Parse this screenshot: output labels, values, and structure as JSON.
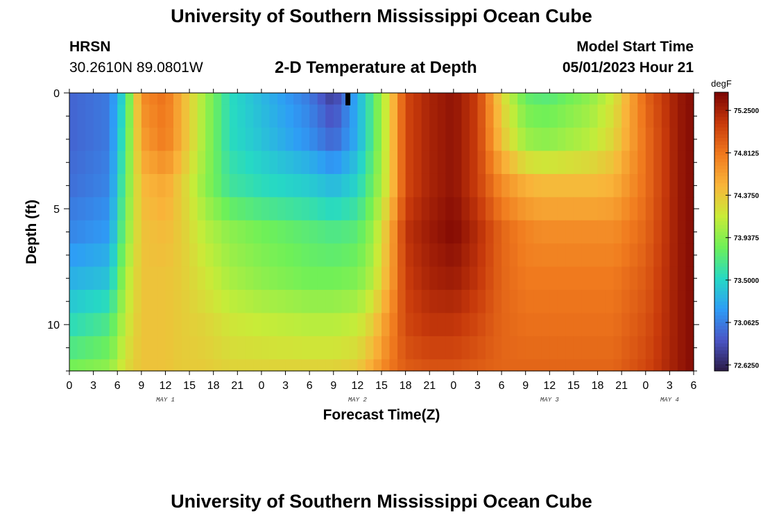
{
  "header": {
    "title": "University of Southern Mississippi Ocean Cube",
    "station": "HRSN",
    "coordinates": "30.2610N  89.0801W",
    "subtitle": "2-D Temperature at Depth",
    "start_label": "Model Start Time",
    "start_time": "05/01/2023 Hour 21",
    "footer_title": "University of Southern Mississippi Ocean Cube"
  },
  "colors": {
    "colormap": [
      "#2b1a45",
      "#4a55c6",
      "#2e9cf6",
      "#26d9c4",
      "#6ef058",
      "#c9ec38",
      "#f9b53a",
      "#f07a1e",
      "#c83a0b",
      "#7a0403"
    ]
  },
  "chart_data": {
    "type": "heatmap",
    "title": "2-D Temperature at Depth",
    "xlabel": "Forecast Time(Z)",
    "ylabel": "Depth (ft)",
    "x_tick_labels": [
      "0",
      "3",
      "6",
      "9",
      "12",
      "15",
      "18",
      "21",
      "0",
      "3",
      "6",
      "9",
      "12",
      "15",
      "18",
      "21",
      "0",
      "3",
      "6",
      "9",
      "12",
      "15",
      "18",
      "21",
      "0",
      "3",
      "6"
    ],
    "x_range_hours_from_may1_00z": [
      0,
      78
    ],
    "date_labels": [
      {
        "text": "MAY 1",
        "hour": 12
      },
      {
        "text": "MAY 2",
        "hour": 36
      },
      {
        "text": "MAY 3",
        "hour": 60
      },
      {
        "text": "MAY 4",
        "hour": 75
      }
    ],
    "y_tick_labels": [
      "0",
      "5",
      "10"
    ],
    "y_range_ft": [
      0,
      12
    ],
    "y_inverted": true,
    "colorbar": {
      "unit": "degF",
      "min": 72.5625,
      "max": 75.4375,
      "tick_labels": [
        "75.2500",
        "74.8125",
        "74.3750",
        "73.9375",
        "73.5000",
        "73.0625",
        "72.6250"
      ]
    },
    "depths_ft": [
      0,
      1,
      2,
      3,
      4,
      5,
      6,
      7,
      8,
      9,
      10,
      11,
      12
    ],
    "series": [
      {
        "depth_ft": 0,
        "times_h": [
          0,
          5,
          7,
          9,
          12,
          14,
          17,
          20,
          24,
          30,
          33,
          36,
          38,
          40,
          42,
          45,
          48,
          51,
          54,
          57,
          59,
          60,
          65,
          68,
          72,
          76,
          78
        ],
        "values": [
          72.95,
          73.05,
          73.6,
          74.7,
          74.85,
          74.5,
          74.0,
          73.55,
          73.35,
          73.05,
          72.75,
          73.3,
          73.75,
          74.3,
          75.05,
          75.25,
          75.35,
          75.1,
          74.3,
          73.8,
          73.75,
          73.75,
          73.95,
          74.2,
          74.9,
          75.3,
          75.4
        ]
      },
      {
        "depth_ft": 2,
        "times_h": [
          0,
          5,
          7,
          9,
          12,
          14,
          17,
          20,
          24,
          30,
          33,
          36,
          38,
          40,
          42,
          45,
          48,
          51,
          54,
          57,
          59,
          60,
          65,
          68,
          72,
          76,
          78
        ],
        "values": [
          72.95,
          73.05,
          73.7,
          74.6,
          74.8,
          74.5,
          74.0,
          73.55,
          73.4,
          73.15,
          72.95,
          73.3,
          73.75,
          74.3,
          75.05,
          75.25,
          75.35,
          75.1,
          74.4,
          74.0,
          73.95,
          73.95,
          74.1,
          74.3,
          74.85,
          75.3,
          75.4
        ]
      },
      {
        "depth_ft": 4,
        "times_h": [
          0,
          5,
          7,
          9,
          12,
          14,
          17,
          20,
          24,
          30,
          33,
          36,
          38,
          40,
          42,
          45,
          48,
          51,
          54,
          57,
          59,
          60,
          65,
          68,
          72,
          76,
          78
        ],
        "values": [
          73.0,
          73.1,
          73.8,
          74.45,
          74.55,
          74.35,
          73.95,
          73.65,
          73.55,
          73.45,
          73.35,
          73.5,
          73.85,
          74.3,
          75.05,
          75.25,
          75.35,
          75.1,
          74.7,
          74.5,
          74.45,
          74.45,
          74.45,
          74.5,
          74.85,
          75.3,
          75.4
        ]
      },
      {
        "depth_ft": 6,
        "times_h": [
          0,
          5,
          7,
          9,
          12,
          14,
          17,
          20,
          24,
          30,
          33,
          36,
          38,
          40,
          42,
          45,
          48,
          51,
          54,
          57,
          59,
          60,
          65,
          68,
          72,
          76,
          78
        ],
        "values": [
          73.1,
          73.2,
          73.9,
          74.4,
          74.45,
          74.35,
          74.1,
          73.95,
          73.85,
          73.75,
          73.7,
          73.75,
          74.0,
          74.5,
          75.15,
          75.3,
          75.4,
          75.2,
          74.9,
          74.75,
          74.7,
          74.7,
          74.7,
          74.7,
          74.9,
          75.3,
          75.4
        ]
      },
      {
        "depth_ft": 8,
        "times_h": [
          0,
          5,
          7,
          9,
          12,
          14,
          17,
          20,
          24,
          30,
          33,
          36,
          38,
          40,
          42,
          45,
          48,
          51,
          54,
          57,
          59,
          60,
          65,
          68,
          72,
          76,
          78
        ],
        "values": [
          73.3,
          73.4,
          74.05,
          74.4,
          74.4,
          74.35,
          74.2,
          74.05,
          73.95,
          73.85,
          73.85,
          73.9,
          74.1,
          74.55,
          75.1,
          75.25,
          75.3,
          75.15,
          74.9,
          74.8,
          74.8,
          74.8,
          74.8,
          74.8,
          74.95,
          75.3,
          75.4
        ]
      },
      {
        "depth_ft": 10,
        "times_h": [
          0,
          5,
          7,
          9,
          12,
          14,
          17,
          20,
          24,
          30,
          33,
          36,
          38,
          40,
          42,
          45,
          48,
          51,
          54,
          57,
          59,
          60,
          65,
          68,
          72,
          76,
          78
        ],
        "values": [
          73.55,
          73.7,
          74.15,
          74.4,
          74.4,
          74.35,
          74.3,
          74.2,
          74.15,
          74.1,
          74.1,
          74.15,
          74.35,
          74.7,
          75.05,
          75.15,
          75.15,
          75.05,
          74.9,
          74.85,
          74.85,
          74.85,
          74.85,
          74.85,
          75.0,
          75.3,
          75.4
        ]
      },
      {
        "depth_ft": 12,
        "times_h": [
          0,
          5,
          7,
          9,
          12,
          14,
          17,
          20,
          24,
          30,
          33,
          36,
          38,
          40,
          42,
          45,
          48,
          51,
          54,
          57,
          59,
          60,
          65,
          68,
          72,
          76,
          78
        ],
        "values": [
          73.85,
          73.95,
          74.25,
          74.4,
          74.4,
          74.35,
          74.35,
          74.3,
          74.3,
          74.3,
          74.3,
          74.35,
          74.55,
          74.8,
          74.95,
          75.0,
          75.0,
          74.95,
          74.9,
          74.9,
          74.9,
          74.9,
          74.9,
          74.9,
          75.05,
          75.3,
          75.4
        ]
      }
    ],
    "grid": false,
    "legend": "colorbar-right"
  }
}
